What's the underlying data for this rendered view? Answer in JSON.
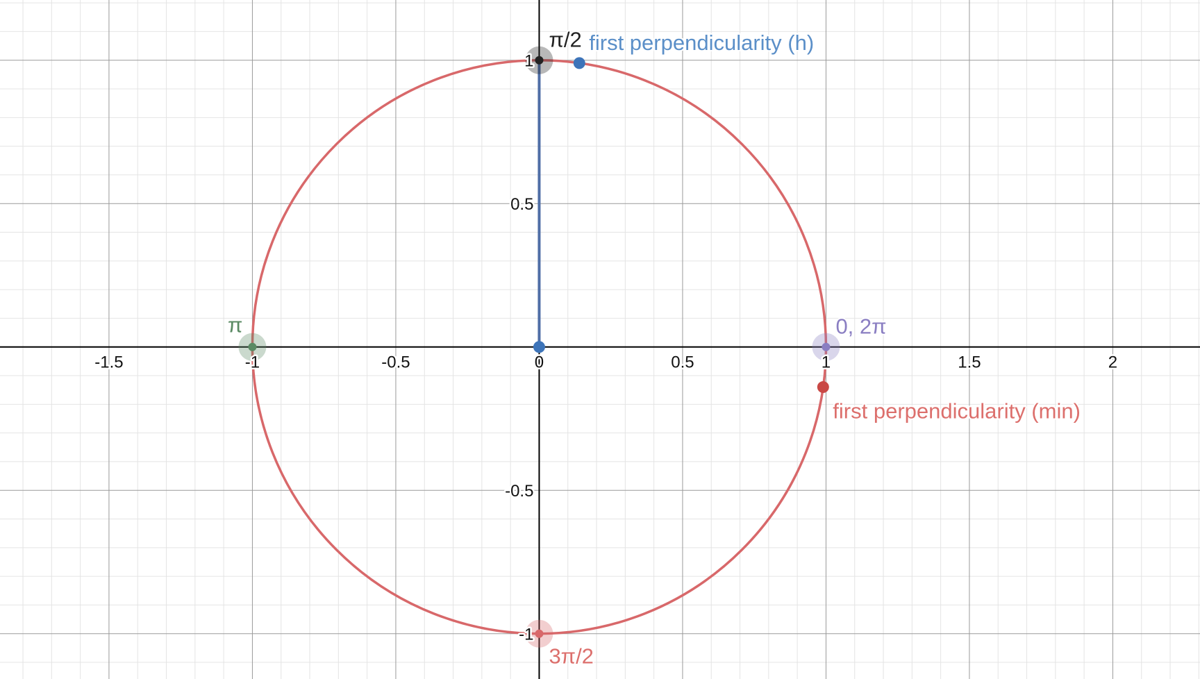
{
  "colors": {
    "background": "#ffffff",
    "curve": "#d8686a",
    "segment": "#4f6ea6",
    "blue": "#3d74b9",
    "blue_label": "#5b8fc8",
    "black": "#222222",
    "green": "#5a8a63",
    "purple": "#8a7ec2",
    "red": "#c94845",
    "red_label": "#dc6f6c"
  },
  "chart_data": {
    "type": "scatter",
    "title": "",
    "xlabel": "",
    "ylabel": "",
    "xlim": [
      -1.88,
      2.3
    ],
    "ylim": [
      -1.15,
      1.21
    ],
    "grid": true,
    "grid_major_step": 0.5,
    "grid_minor_step": 0.1,
    "x_ticks": [
      {
        "value": -1.5,
        "label": "-1.5"
      },
      {
        "value": -1,
        "label": "-1"
      },
      {
        "value": -0.5,
        "label": "-0.5"
      },
      {
        "value": 0,
        "label": "0"
      },
      {
        "value": 0.5,
        "label": "0.5"
      },
      {
        "value": 1,
        "label": "1"
      },
      {
        "value": 1.5,
        "label": "1.5"
      },
      {
        "value": 2,
        "label": "2"
      }
    ],
    "y_ticks": [
      {
        "value": 1,
        "label": "1"
      },
      {
        "value": 0.5,
        "label": "0.5"
      },
      {
        "value": -0.5,
        "label": "-0.5"
      },
      {
        "value": -1,
        "label": "-1"
      }
    ],
    "curves": [
      {
        "kind": "circle",
        "center": [
          0,
          0
        ],
        "radius": 1,
        "color_key": "curve"
      }
    ],
    "segments": [
      {
        "from": [
          0,
          0
        ],
        "to": [
          0,
          1
        ],
        "color_key": "segment"
      }
    ],
    "points": [
      {
        "x": 0,
        "y": 1,
        "label": "π/2",
        "color_key": "black",
        "label_color_key": "black",
        "highlight": true,
        "label_anchor": "top-right"
      },
      {
        "x": 0.14,
        "y": 0.99,
        "label": "first perpendicularity (h)",
        "color_key": "blue",
        "label_color_key": "blue_label",
        "highlight": false,
        "label_anchor": "top-right"
      },
      {
        "x": -1,
        "y": 0,
        "label": "π",
        "color_key": "green",
        "label_color_key": "green",
        "highlight": true,
        "label_anchor": "top-left"
      },
      {
        "x": 1,
        "y": 0,
        "label": "0, 2π",
        "color_key": "purple",
        "label_color_key": "purple",
        "highlight": true,
        "label_anchor": "top-right"
      },
      {
        "x": 0.99,
        "y": -0.14,
        "label": "first perpendicularity (min)",
        "color_key": "red",
        "label_color_key": "red_label",
        "highlight": false,
        "label_anchor": "bottom-right"
      },
      {
        "x": 0,
        "y": -1,
        "label": "3π/2",
        "color_key": "curve",
        "label_color_key": "red_label",
        "highlight": true,
        "label_anchor": "bottom-right"
      },
      {
        "x": 0,
        "y": 0,
        "label": "",
        "color_key": "blue",
        "label_color_key": "blue_label",
        "highlight": false,
        "label_anchor": "none"
      }
    ]
  }
}
